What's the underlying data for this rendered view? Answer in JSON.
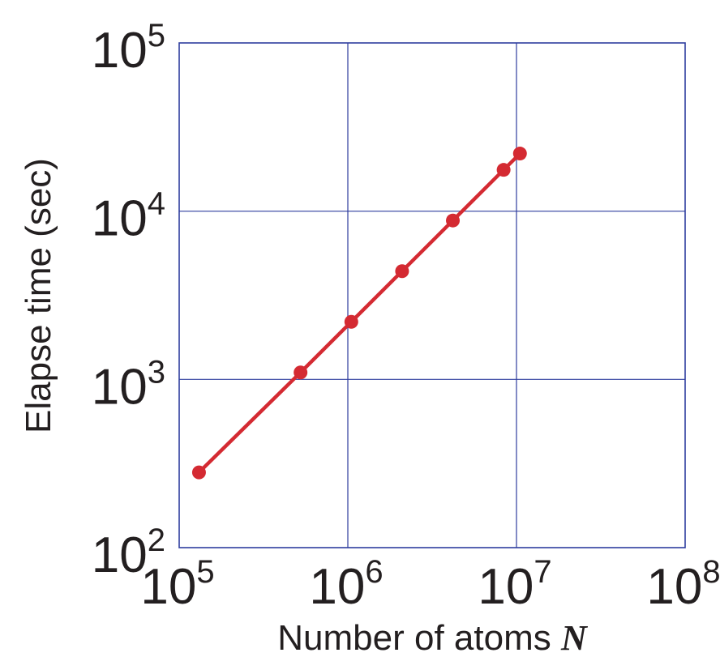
{
  "chart_data": {
    "type": "line",
    "xscale": "log",
    "yscale": "log",
    "xlim": [
      100000,
      100000000
    ],
    "ylim": [
      100,
      100000
    ],
    "grid": true,
    "xlabel_text": "Number of atoms ",
    "xlabel_var": "N",
    "ylabel": "Elapse time (sec)",
    "xticks": [
      {
        "value": 100000,
        "base": "10",
        "exp": "5"
      },
      {
        "value": 1000000,
        "base": "10",
        "exp": "6"
      },
      {
        "value": 10000000,
        "base": "10",
        "exp": "7"
      },
      {
        "value": 100000000,
        "base": "10",
        "exp": "8"
      }
    ],
    "yticks": [
      {
        "value": 100,
        "base": "10",
        "exp": "2"
      },
      {
        "value": 1000,
        "base": "10",
        "exp": "3"
      },
      {
        "value": 10000,
        "base": "10",
        "exp": "4"
      },
      {
        "value": 100000,
        "base": "10",
        "exp": "5"
      }
    ],
    "series": [
      {
        "x": [
          131072,
          524288,
          1048576,
          2097152,
          4194304,
          8388608,
          10485760
        ],
        "y": [
          280,
          1100,
          2200,
          4400,
          8800,
          17600,
          22000
        ]
      }
    ]
  },
  "colors": {
    "grid": "#2e3d9e",
    "series": "#d42a32",
    "text": "#231f20"
  }
}
